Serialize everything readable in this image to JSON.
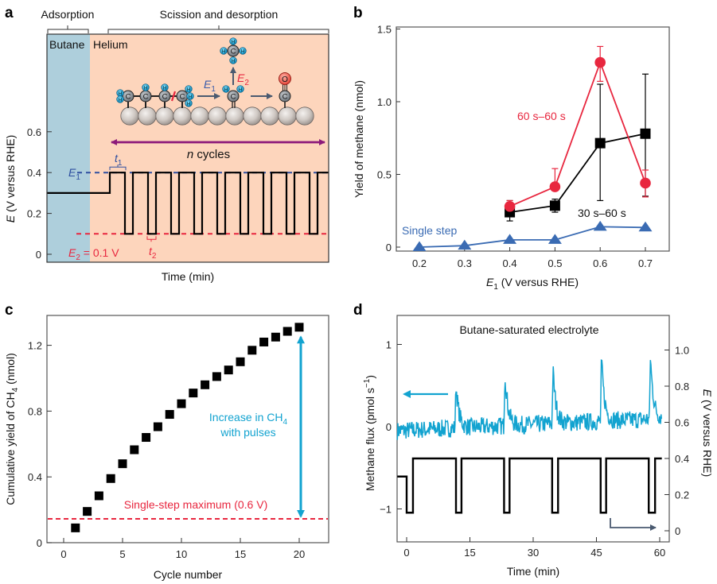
{
  "figure": {
    "panels": [
      "a",
      "b",
      "c",
      "d"
    ]
  },
  "chart_data": [
    {
      "panel": "a",
      "type": "line",
      "title": "",
      "phase_labels": {
        "adsorption": "Adsorption",
        "scission": "Scission and desorption"
      },
      "region_labels": {
        "butane": "Butane",
        "helium": "Helium"
      },
      "region_colors": {
        "butane": "#aecfdc",
        "helium": "#fdd5bc"
      },
      "xlabel": "Time (min)",
      "ylabel": "E (V versus RHE)",
      "yticks": [
        0,
        0.2,
        0.4,
        0.6
      ],
      "ytick_labels": [
        "0",
        "0.2",
        "0.4",
        "0.6"
      ],
      "ylim": [
        -0.04,
        1.0
      ],
      "initial_potential": 0.3,
      "E1": {
        "label": "E",
        "sub": "1",
        "value": 0.4,
        "color": "#2e4fa0"
      },
      "E2": {
        "label": "E",
        "sub": "2",
        "value": 0.1,
        "text": " = 0.1 V",
        "color": "#e8273f"
      },
      "t1_label": {
        "t": "t",
        "sub": "1"
      },
      "t2_label": {
        "t": "t",
        "sub": "2"
      },
      "cycles_label": {
        "n": "n",
        "text": " cycles"
      },
      "cycles_arrow_color": "#8c1a7a",
      "pulse_count": 9,
      "schematic": {
        "E1_label": "E",
        "E1_sub": "1",
        "E2_label": "E",
        "E2_sub": "2",
        "atom_C": "C",
        "atom_H": "H",
        "atom_O": "O"
      }
    },
    {
      "panel": "b",
      "type": "line",
      "xlabel": "E1 (V versus RHE)",
      "xlabel_parts": {
        "E": "E",
        "sub": "1",
        "rest": " (V versus RHE)"
      },
      "ylabel": "Yield of methane (nmol)",
      "xticks": [
        0.2,
        0.3,
        0.4,
        0.5,
        0.6,
        0.7
      ],
      "xtick_labels": [
        "0.2",
        "0.3",
        "0.4",
        "0.5",
        "0.6",
        "0.7"
      ],
      "yticks": [
        0,
        0.5,
        1.0,
        1.5
      ],
      "ytick_labels": [
        "0",
        "0.5",
        "1.0",
        "1.5"
      ],
      "xlim": [
        0.15,
        0.75
      ],
      "ylim": [
        -0.04,
        1.5
      ],
      "series": [
        {
          "name": "60 s–60 s",
          "color": "#e8273f",
          "marker": "circle",
          "x": [
            0.4,
            0.5,
            0.6,
            0.7
          ],
          "y": [
            0.28,
            0.415,
            1.27,
            0.44
          ],
          "err_low": [
            0.25,
            0.39,
            1.14,
            0.345
          ],
          "err_high": [
            0.32,
            0.54,
            1.38,
            0.53
          ]
        },
        {
          "name": "30 s–60 s",
          "color": "#000000",
          "marker": "square",
          "x": [
            0.4,
            0.5,
            0.6,
            0.7
          ],
          "y": [
            0.24,
            0.285,
            0.715,
            0.78
          ],
          "err_low": [
            0.18,
            0.24,
            0.32,
            0.35
          ],
          "err_high": [
            0.32,
            0.33,
            1.12,
            1.19
          ]
        },
        {
          "name": "Single step",
          "color": "#3a6bb3",
          "marker": "triangle",
          "x": [
            0.2,
            0.3,
            0.4,
            0.5,
            0.6,
            0.7
          ],
          "y": [
            0.0,
            0.01,
            0.05,
            0.05,
            0.14,
            0.135
          ]
        }
      ]
    },
    {
      "panel": "c",
      "type": "scatter",
      "xlabel": "Cycle number",
      "ylabel": "Cumulative yield of CH4 (nmol)",
      "ylabel_parts": {
        "pre": "Cumulative yield of CH",
        "sub": "4",
        "post": " (nmol)"
      },
      "xticks": [
        0,
        5,
        10,
        15,
        20
      ],
      "xtick_labels": [
        "0",
        "5",
        "10",
        "15",
        "20"
      ],
      "yticks": [
        0,
        0.4,
        0.8,
        1.2
      ],
      "ytick_labels": [
        "0",
        "0.4",
        "0.8",
        "1.2"
      ],
      "xlim": [
        -1.5,
        22.5
      ],
      "ylim": [
        0,
        1.37
      ],
      "x": [
        1,
        2,
        3,
        4,
        5,
        6,
        7,
        8,
        9,
        10,
        11,
        12,
        13,
        14,
        15,
        16,
        17,
        18,
        19,
        20
      ],
      "y": [
        0.09,
        0.19,
        0.285,
        0.39,
        0.48,
        0.565,
        0.64,
        0.705,
        0.78,
        0.845,
        0.91,
        0.96,
        1.01,
        1.05,
        1.1,
        1.17,
        1.22,
        1.25,
        1.285,
        1.31
      ],
      "reference_line": {
        "label": "Single-step maximum (0.6 V)",
        "value": 0.145,
        "color": "#e8273f"
      },
      "annotation": {
        "line1_pre": "Increase in CH",
        "line1_sub": "4",
        "line2": "with pulses",
        "color": "#12a3d0"
      }
    },
    {
      "panel": "d",
      "type": "line",
      "title": "Butane-saturated electrolyte",
      "xlabel": "Time (min)",
      "ylabel_left": "Methane flux (pmol s-1)",
      "ylabel_left_parts": {
        "pre": "Methane flux (pmol s",
        "sup": "−1",
        "post": ")"
      },
      "ylabel_right": "E (V versus RHE)",
      "ylabel_right_parts": {
        "E": "E",
        "rest": " (V versus RHE)"
      },
      "xticks": [
        0,
        15,
        30,
        45,
        60
      ],
      "xtick_labels": [
        "0",
        "15",
        "30",
        "45",
        "60"
      ],
      "yticks_left": [
        -1,
        0,
        1
      ],
      "ytick_labels_left": [
        "−1",
        "0",
        "1"
      ],
      "yticks_right": [
        0,
        0.2,
        0.4,
        0.6,
        0.8,
        1.0
      ],
      "ytick_labels_right": [
        "0",
        "0.2",
        "0.4",
        "0.6",
        "0.8",
        "1.0"
      ],
      "xlim": [
        -2.2,
        60.5
      ],
      "ylim_left": [
        -1.4,
        1.3
      ],
      "ylim_right": [
        -0.06,
        1.18
      ],
      "series": [
        {
          "name": "Methane flux",
          "axis": "left",
          "color": "#12a3d0",
          "baseline_start": -0.05,
          "baseline_end": 0.1,
          "spikes": [
            {
              "t": 11.7,
              "peak": 0.52
            },
            {
              "t": 23.3,
              "peak": 0.68
            },
            {
              "t": 34.7,
              "peak": 0.7
            },
            {
              "t": 46.2,
              "peak": 0.83
            },
            {
              "t": 57.8,
              "peak": 0.85
            }
          ]
        },
        {
          "name": "Potential",
          "axis": "right",
          "color": "#000000",
          "t": [
            -2.2,
            0,
            0,
            1.5,
            1.5,
            11.7,
            11.7,
            13.0,
            13.0,
            23.1,
            23.1,
            24.4,
            24.4,
            34.5,
            34.5,
            35.9,
            35.9,
            46.0,
            46.0,
            47.3,
            47.3,
            57.4,
            57.4,
            58.9,
            58.9,
            60.5
          ],
          "E": [
            0.3,
            0.3,
            0.1,
            0.1,
            0.4,
            0.4,
            0.1,
            0.1,
            0.4,
            0.4,
            0.1,
            0.1,
            0.4,
            0.4,
            0.1,
            0.1,
            0.4,
            0.4,
            0.1,
            0.1,
            0.4,
            0.4,
            0.1,
            0.1,
            0.4,
            0.4
          ]
        }
      ],
      "arrow_colors": {
        "left": "#12a3d0",
        "right": "#4a5a70"
      }
    }
  ]
}
